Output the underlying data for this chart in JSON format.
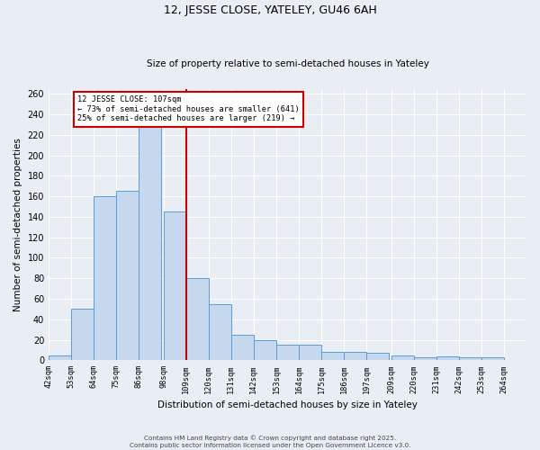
{
  "title": "12, JESSE CLOSE, YATELEY, GU46 6AH",
  "subtitle": "Size of property relative to semi-detached houses in Yateley",
  "xlabel": "Distribution of semi-detached houses by size in Yateley",
  "ylabel": "Number of semi-detached properties",
  "annotation_line1": "12 JESSE CLOSE: 107sqm",
  "annotation_line2": "← 73% of semi-detached houses are smaller (641)",
  "annotation_line3": "25% of semi-detached houses are larger (219) →",
  "bin_labels": [
    "42sqm",
    "53sqm",
    "64sqm",
    "75sqm",
    "86sqm",
    "98sqm",
    "109sqm",
    "120sqm",
    "131sqm",
    "142sqm",
    "153sqm",
    "164sqm",
    "175sqm",
    "186sqm",
    "197sqm",
    "209sqm",
    "220sqm",
    "231sqm",
    "242sqm",
    "253sqm",
    "264sqm"
  ],
  "bin_edges": [
    42,
    53,
    64,
    75,
    86,
    98,
    109,
    120,
    131,
    142,
    153,
    164,
    175,
    186,
    197,
    209,
    220,
    231,
    242,
    253,
    264
  ],
  "bar_heights": [
    5,
    50,
    160,
    165,
    240,
    145,
    80,
    55,
    25,
    20,
    15,
    15,
    8,
    8,
    7,
    5,
    3,
    4,
    3,
    3
  ],
  "bar_color": "#c5d8ed",
  "bar_edge_color": "#5b9bd5",
  "vline_x": 109,
  "vline_color": "#cc0000",
  "box_color": "#cc0000",
  "ylim_max": 265,
  "yticks": [
    0,
    20,
    40,
    60,
    80,
    100,
    120,
    140,
    160,
    180,
    200,
    220,
    240,
    260
  ],
  "footer_line1": "Contains HM Land Registry data © Crown copyright and database right 2025.",
  "footer_line2": "Contains public sector information licensed under the Open Government Licence v3.0.",
  "bg_color": "#e8eef4"
}
